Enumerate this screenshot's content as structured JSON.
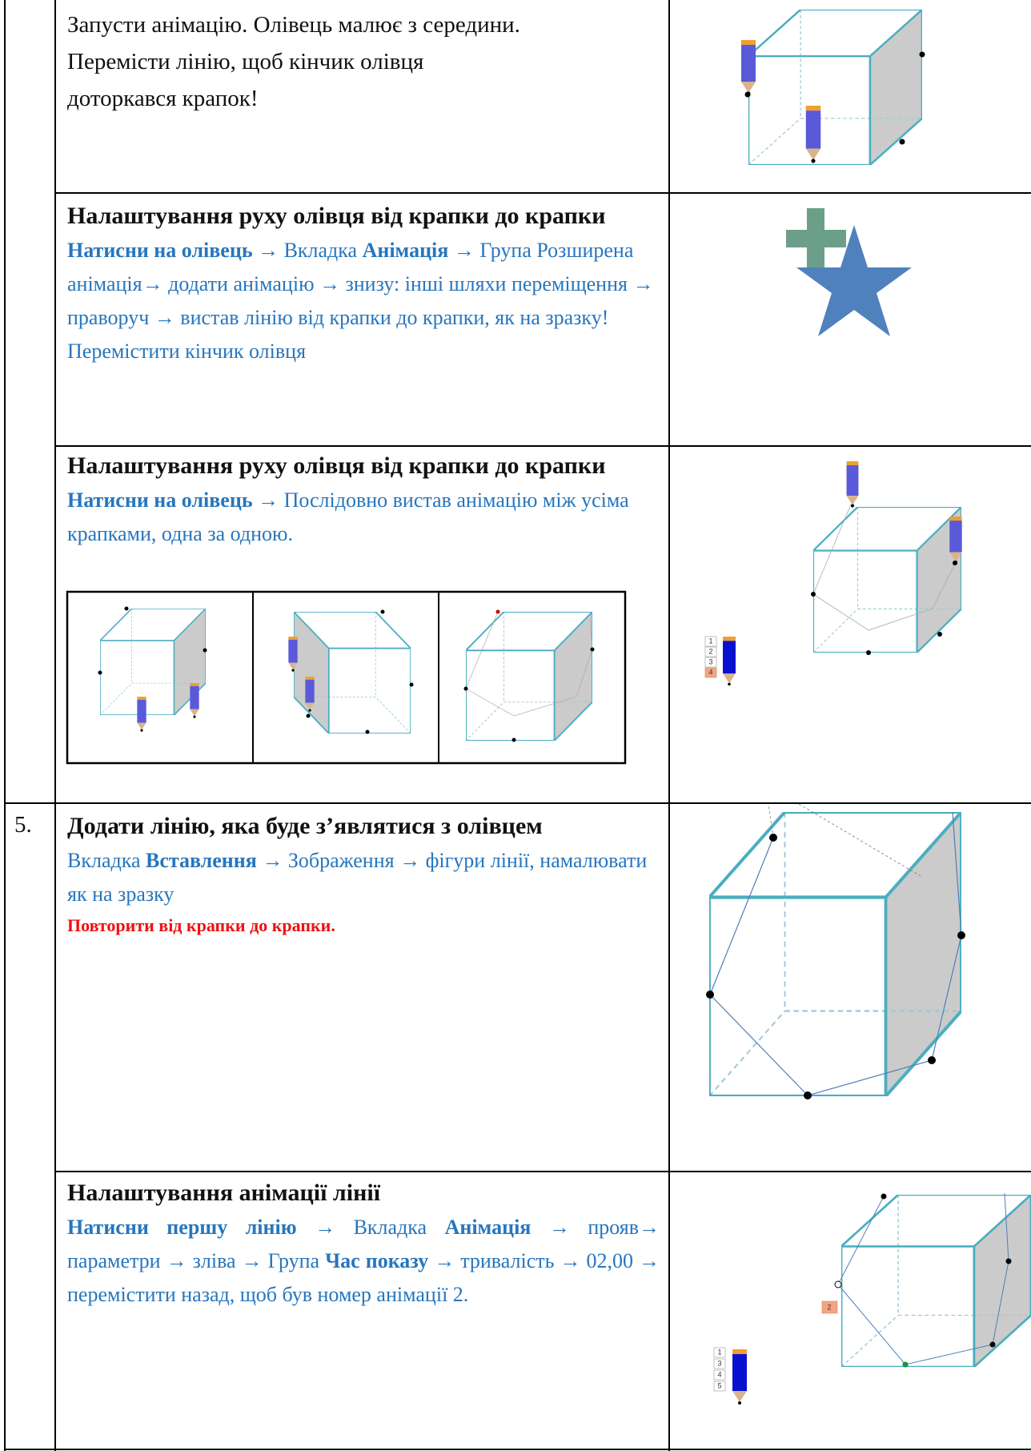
{
  "table": {
    "rows": [
      {
        "lines": [
          "Запусти анімацію. Олівець малює з середини.",
          "Перемісти лінію, щоб кінчик олівця",
          "доторкався крапок!"
        ]
      },
      {
        "heading": "Налаштування руху олівця від крапки до крапки",
        "runs": [
          {
            "text": "Натисни на олівець",
            "bold": true
          },
          {
            "text": " → Вкладка ",
            "bold": false
          },
          {
            "text": "Анімація",
            "bold": true
          },
          {
            "text": " → Група Розширена анімація→ додати анімацію → знизу: інші шляхи переміщення → праворуч  → вистав лінію від крапки до крапки, як на зразку!",
            "bold": false
          }
        ],
        "note": "Перемістити кінчик олівця"
      },
      {
        "heading": "Налаштування руху олівця від крапки до крапки",
        "runs": [
          {
            "text": "Натисни на олівець",
            "bold": true
          },
          {
            "text": " → Послідовно вистав анімацію між усіма крапками, одна за одною.",
            "bold": false
          }
        ],
        "image_labels": [
          "1",
          "2",
          "3",
          "4"
        ]
      },
      {
        "number": "5.",
        "heading": "Додати лінію, яка буде з’являтися з олівцем",
        "runs": [
          {
            "text": "Вкладка ",
            "bold": false
          },
          {
            "text": "Вставлення",
            "bold": true
          },
          {
            "text": " → Зображення → фігури лінії, намалювати як на зразку",
            "bold": false
          }
        ],
        "warning": "Повторити від крапки до крапки."
      },
      {
        "heading": "Налаштування анімації лінії",
        "runs": [
          {
            "text": "Натисни першу лінію",
            "bold": true
          },
          {
            "text": " → Вкладка ",
            "bold": false
          },
          {
            "text": "Анімація",
            "bold": true
          },
          {
            "text": " → прояв→ параметри → зліва → Група ",
            "bold": false
          },
          {
            "text": "Час показу",
            "bold": true
          },
          {
            "text": " → тривалість → 02,00  → перемістити назад, щоб був номер анімації 2.",
            "bold": false
          }
        ],
        "image_labels": [
          "2",
          "1",
          "3",
          "4",
          "5"
        ]
      }
    ]
  }
}
